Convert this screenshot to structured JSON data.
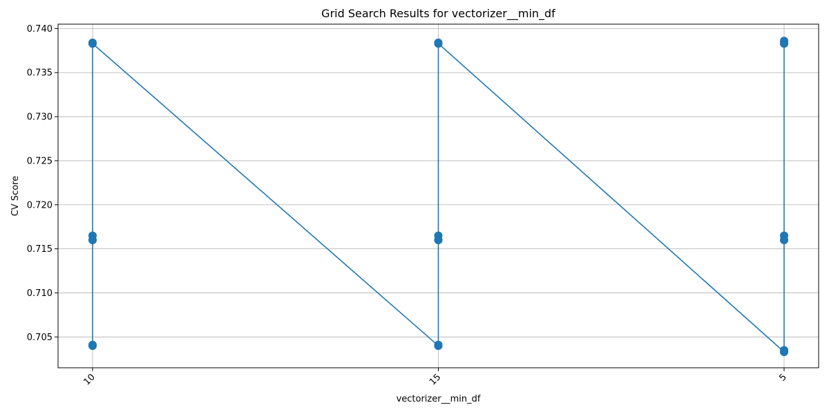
{
  "chart_data": {
    "type": "line",
    "title": "Grid Search Results for vectorizer__min_df",
    "xlabel": "vectorizer__min_df",
    "ylabel": "CV Score",
    "categories": [
      "10",
      "15",
      "5"
    ],
    "ylim": [
      0.7015,
      0.7405
    ],
    "yticks": [
      0.705,
      0.71,
      0.715,
      0.72,
      0.725,
      0.73,
      0.735,
      0.74
    ],
    "ytick_labels": [
      "0.705",
      "0.710",
      "0.715",
      "0.720",
      "0.725",
      "0.730",
      "0.735",
      "0.740"
    ],
    "grid": true,
    "color": "#1f77b4",
    "series": [
      {
        "x": [
          "10",
          "10",
          "10",
          "10",
          "10",
          "10",
          "10",
          "10",
          "10",
          "15",
          "15",
          "15",
          "15",
          "15",
          "15",
          "15",
          "15",
          "15",
          "5",
          "5",
          "5",
          "5",
          "5",
          "5",
          "5",
          "5",
          "5"
        ],
        "values": [
          0.704,
          0.716,
          0.7383,
          0.7041,
          0.7165,
          0.7384,
          0.704,
          0.716,
          0.7383,
          0.704,
          0.716,
          0.7383,
          0.7041,
          0.7165,
          0.7384,
          0.704,
          0.716,
          0.7383,
          0.7033,
          0.716,
          0.7383,
          0.7035,
          0.7165,
          0.7386,
          0.7033,
          0.716,
          0.7383
        ]
      }
    ]
  }
}
